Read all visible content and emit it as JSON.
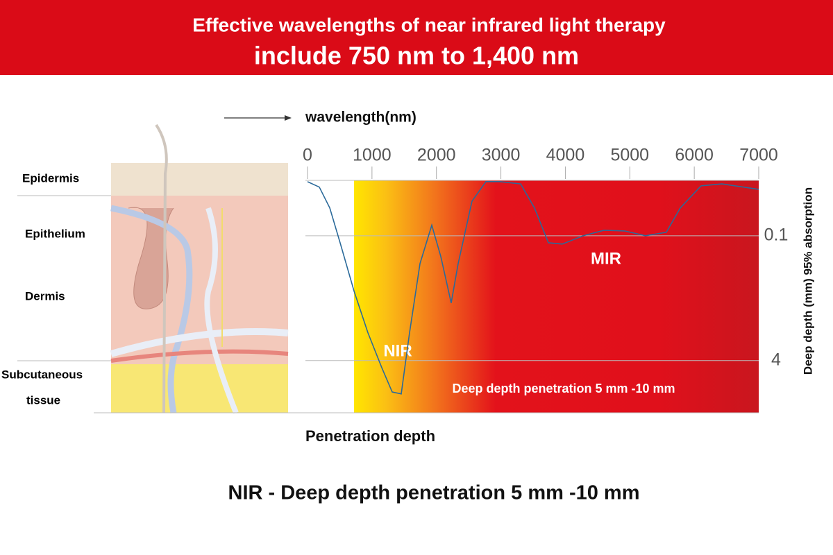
{
  "header": {
    "title": "Effective wavelengths of near infrared light therapy",
    "subtitle": "include 750 nm to 1,400 nm"
  },
  "skin_layers": [
    "Epidermis",
    "Epithelium",
    "Dermis",
    "Subcutaneous",
    "tissue"
  ],
  "chart_data": {
    "type": "line",
    "x_label": "wavelength(nm)",
    "x_axis_label_bottom": "Penetration depth",
    "y_label": "Deep depth (mm) 95% absorption",
    "xlim": [
      0,
      7000
    ],
    "xticks": [
      0,
      1000,
      2000,
      3000,
      4000,
      5000,
      6000,
      7000
    ],
    "ylim": [
      5.63,
      -1.63
    ],
    "yticks": [
      0.1,
      4
    ],
    "grid": true,
    "series": [
      {
        "name": "absorption",
        "color": "#2b6a9a",
        "x": [
          0,
          183,
          345,
          506,
          722,
          937,
          1152,
          1314,
          1454,
          1583,
          1745,
          1928,
          2068,
          2229,
          2337,
          2552,
          2768,
          2983,
          3306,
          3521,
          3737,
          3952,
          4275,
          4598,
          4921,
          5244,
          5567,
          5783,
          6106,
          6429,
          7000
        ],
        "values": [
          -1.59,
          -1.42,
          -0.77,
          0.32,
          1.83,
          3.13,
          4.22,
          4.98,
          5.04,
          3.13,
          0.97,
          -0.23,
          0.75,
          2.2,
          0.97,
          -0.98,
          -1.59,
          -1.59,
          -1.52,
          -0.77,
          0.32,
          0.36,
          0.1,
          -0.07,
          -0.05,
          0.1,
          -0.01,
          -0.77,
          -1.46,
          -1.52,
          -1.35
        ]
      }
    ],
    "annotations": [
      "NIR",
      "MIR",
      "Deep depth penetration 5 mm -10 mm"
    ],
    "caption": "NIR - Deep depth penetration 5 mm -10 mm"
  }
}
